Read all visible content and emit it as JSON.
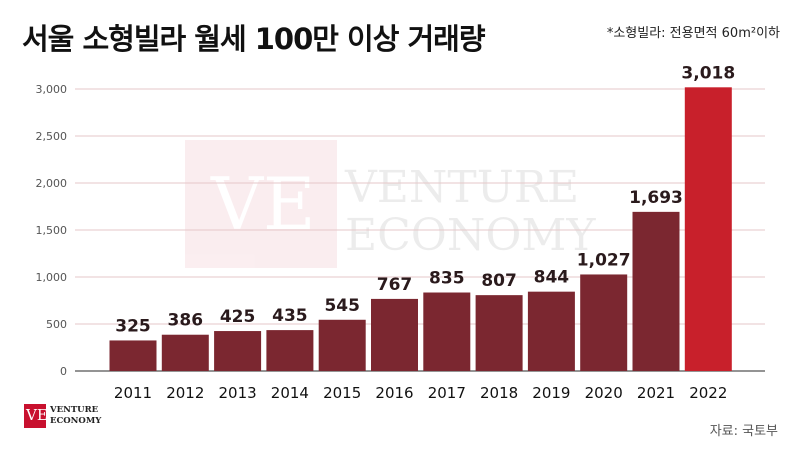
{
  "title": "서울 소형빌라 월세 100만 이상 거래량",
  "note": "*소형빌라: 전용면적 60m²이하",
  "source": "자료: 국토부",
  "watermark": {
    "line1": "VENTURE",
    "line2": "ECONOMY",
    "mark": "VE"
  },
  "logo": {
    "line1": "VENTURE",
    "line2": "ECONOMY",
    "mark": "VE"
  },
  "colors": {
    "bar": "#7b2730",
    "highlight": "#c8202b",
    "grid": "#e6c7c9",
    "axis": "#555555"
  },
  "chart_data": {
    "type": "bar",
    "categories": [
      "2011",
      "2012",
      "2013",
      "2014",
      "2015",
      "2016",
      "2017",
      "2018",
      "2019",
      "2020",
      "2021",
      "2022"
    ],
    "values": [
      325,
      386,
      425,
      435,
      545,
      767,
      835,
      807,
      844,
      1027,
      1693,
      3018
    ],
    "value_labels": [
      "325",
      "386",
      "425",
      "435",
      "545",
      "767",
      "835",
      "807",
      "844",
      "1,027",
      "1,693",
      "3,018"
    ],
    "yticks": [
      0,
      500,
      1000,
      1500,
      2000,
      2500,
      3000
    ],
    "ytick_labels": [
      "0",
      "500",
      "1,000",
      "1,500",
      "2,000",
      "2,500",
      "3,000"
    ],
    "ylim": [
      0,
      3000
    ],
    "grid": true,
    "highlight_category": "2022",
    "title": "서울 소형빌라 월세 100만 이상 거래량",
    "xlabel": "",
    "ylabel": ""
  }
}
